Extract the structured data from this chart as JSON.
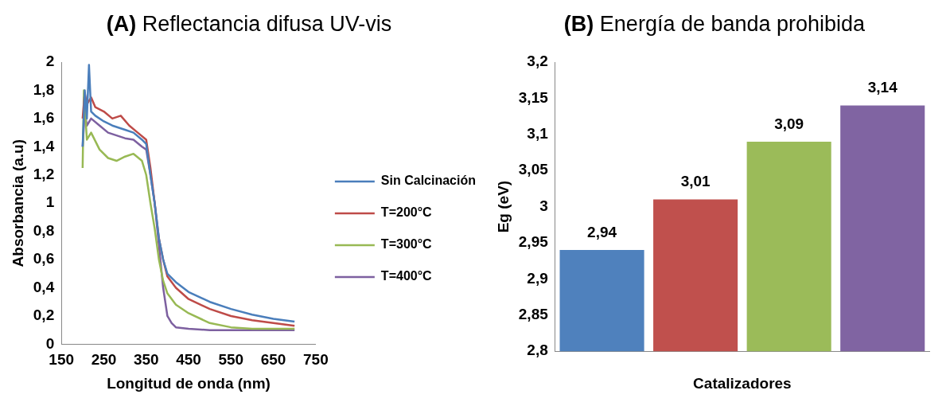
{
  "chart_data": [
    {
      "type": "line",
      "title": "(A) Reflectancia difusa UV-vis",
      "xlabel": "Longitud de onda (nm)",
      "ylabel": "Absorbancia (a.u)",
      "xlim": [
        150,
        750
      ],
      "xticks": [
        150,
        250,
        350,
        450,
        550,
        650,
        750
      ],
      "ylim": [
        0,
        2
      ],
      "yticks": [
        0,
        {
          "value": 0.2,
          "label": "0,2"
        },
        {
          "value": 0.4,
          "label": "0,4"
        },
        {
          "value": 0.6,
          "label": "0,6"
        },
        {
          "value": 0.8,
          "label": "0,8"
        },
        1,
        {
          "value": 1.2,
          "label": "1,2"
        },
        {
          "value": 1.4,
          "label": "1,4"
        },
        {
          "value": 1.6,
          "label": "1,6"
        },
        {
          "value": 1.8,
          "label": "1,8"
        },
        2
      ],
      "grid": false,
      "legend": "right",
      "marker": "none",
      "series": [
        {
          "name": "Sin Calcinación",
          "color": "#4a7ebb",
          "x": [
            200,
            205,
            210,
            215,
            220,
            230,
            250,
            270,
            300,
            320,
            340,
            350,
            360,
            370,
            380,
            390,
            400,
            420,
            450,
            500,
            550,
            600,
            650,
            700
          ],
          "values": [
            1.4,
            1.8,
            1.6,
            1.98,
            1.65,
            1.62,
            1.58,
            1.55,
            1.52,
            1.5,
            1.45,
            1.42,
            1.2,
            1.0,
            0.75,
            0.6,
            0.5,
            0.44,
            0.37,
            0.3,
            0.25,
            0.21,
            0.18,
            0.16
          ]
        },
        {
          "name": "T=200°C",
          "color": "#be4b48",
          "x": [
            200,
            205,
            210,
            220,
            230,
            250,
            270,
            290,
            310,
            330,
            350,
            360,
            370,
            380,
            390,
            400,
            420,
            450,
            500,
            550,
            600,
            650,
            700
          ],
          "values": [
            1.6,
            1.78,
            1.7,
            1.75,
            1.68,
            1.65,
            1.6,
            1.62,
            1.55,
            1.5,
            1.45,
            1.25,
            1.0,
            0.75,
            0.6,
            0.48,
            0.4,
            0.32,
            0.25,
            0.2,
            0.17,
            0.15,
            0.13
          ]
        },
        {
          "name": "T=300°C",
          "color": "#98b954",
          "x": [
            200,
            203,
            210,
            220,
            240,
            260,
            280,
            300,
            320,
            340,
            350,
            360,
            370,
            380,
            390,
            400,
            420,
            450,
            500,
            550,
            600,
            650,
            700
          ],
          "values": [
            1.25,
            1.8,
            1.45,
            1.5,
            1.38,
            1.32,
            1.3,
            1.33,
            1.35,
            1.3,
            1.2,
            1.0,
            0.82,
            0.6,
            0.45,
            0.36,
            0.28,
            0.22,
            0.15,
            0.12,
            0.11,
            0.11,
            0.11
          ]
        },
        {
          "name": "T=400°C",
          "color": "#7d60a0",
          "x": [
            200,
            205,
            210,
            220,
            240,
            260,
            280,
            300,
            320,
            340,
            350,
            360,
            370,
            380,
            390,
            400,
            410,
            420,
            450,
            500,
            600,
            700
          ],
          "values": [
            1.4,
            1.65,
            1.55,
            1.6,
            1.55,
            1.5,
            1.48,
            1.46,
            1.45,
            1.4,
            1.38,
            1.2,
            1.0,
            0.7,
            0.4,
            0.2,
            0.15,
            0.12,
            0.11,
            0.1,
            0.1,
            0.1
          ]
        }
      ]
    },
    {
      "type": "bar",
      "title": "(B) Energía de banda prohibida",
      "xlabel": "Catalizadores",
      "ylabel": "Eg (eV)",
      "categories": [
        null,
        null,
        null,
        null
      ],
      "values": [
        2.94,
        3.01,
        3.09,
        3.14
      ],
      "colors": [
        "#4f81bd",
        "#c0504d",
        "#9bbb59",
        "#8064a2"
      ],
      "value_labels": [
        "2,94",
        "3,01",
        "3,09",
        "3,14"
      ],
      "ylim": [
        2.8,
        3.2
      ],
      "yticks": [
        {
          "value": 2.8,
          "label": "2,8"
        },
        {
          "value": 2.85,
          "label": "2,85"
        },
        {
          "value": 2.9,
          "label": "2,9"
        },
        {
          "value": 2.95,
          "label": "2,95"
        },
        3,
        {
          "value": 3.05,
          "label": "3,05"
        },
        {
          "value": 3.1,
          "label": "3,1"
        },
        {
          "value": 3.15,
          "label": "3,15"
        },
        {
          "value": 3.2,
          "label": "3,2"
        }
      ],
      "grid": false,
      "legend": false
    }
  ]
}
